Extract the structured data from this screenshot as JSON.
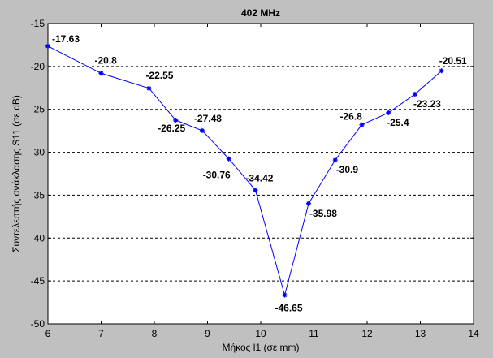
{
  "chart_data": {
    "type": "line",
    "title": "402 MHz",
    "xlabel": "Μήκος l1 (σε mm)",
    "ylabel": "Συντελεστής ανάκλασης S11 (σε dB)",
    "xlim": [
      6,
      14
    ],
    "ylim": [
      -50,
      -15
    ],
    "xticks": [
      6,
      7,
      8,
      9,
      10,
      11,
      12,
      13,
      14
    ],
    "yticks": [
      -15,
      -20,
      -25,
      -30,
      -35,
      -40,
      -45,
      -50
    ],
    "grid": "horizontal dashed",
    "colors": {
      "series": "#0000ff",
      "background": "#c0c0c0",
      "plot_area": "#ffffff"
    },
    "series": [
      {
        "x": [
          6,
          7,
          7.9,
          8.4,
          8.9,
          9.4,
          9.9,
          10.45,
          10.9,
          11.4,
          11.9,
          12.4,
          12.9,
          13.4
        ],
        "values": [
          -17.63,
          -20.8,
          -22.55,
          -26.25,
          -27.48,
          -30.76,
          -34.42,
          -46.65,
          -35.98,
          -30.9,
          -26.8,
          -25.4,
          -23.23,
          -20.51
        ],
        "labels": [
          "-17.63",
          "-20.8",
          "-22.55",
          "-26.25",
          "-27.48",
          "-30.76",
          "-34.42",
          "-46.65",
          "-35.98",
          "-30.9",
          "-26.8",
          "-25.4",
          "-23.23",
          "-20.51"
        ]
      }
    ]
  }
}
